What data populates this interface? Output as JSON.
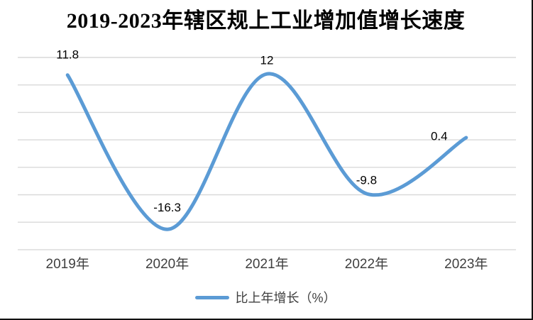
{
  "page": {
    "background": "#ffffff",
    "frame_border_color": "#111111"
  },
  "chart_data": {
    "type": "line",
    "title": "2019-2023年辖区规上工业增加值增长速度",
    "categories": [
      "2019年",
      "2020年",
      "2021年",
      "2022年",
      "2023年"
    ],
    "series": [
      {
        "name": "比上年增长（%）",
        "values": [
          11.8,
          -16.3,
          12,
          -9.8,
          0.4
        ]
      }
    ],
    "data_labels": [
      "11.8",
      "-16.3",
      "12",
      "-9.8",
      "0.4"
    ],
    "xlabel": "",
    "ylabel": "",
    "ylim": [
      -20,
      15
    ],
    "grid_step": 5,
    "grid": "on",
    "y_axis_labels_shown": false,
    "smooth": true,
    "legend_position": "bottom",
    "line_color": "#5B9BD5",
    "gridline_color": "#D9D9D9",
    "data_label_color": "#000000",
    "axis_label_color": "#3f3f3f",
    "title_color": "#000000"
  }
}
